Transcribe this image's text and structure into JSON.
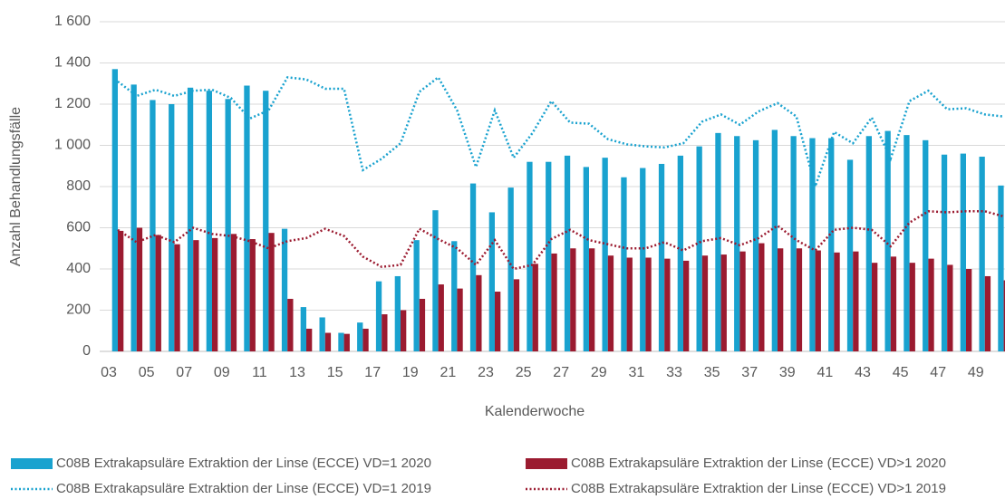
{
  "chart_data": {
    "type": "bar",
    "x_label": "Kalenderwoche",
    "y_label": "Anzahl Behandlungsfälle",
    "categories": [
      "03",
      null,
      "05",
      null,
      "07",
      null,
      "09",
      null,
      "11",
      null,
      "13",
      null,
      "15",
      null,
      "17",
      null,
      "19",
      null,
      "21",
      null,
      "23",
      null,
      "25",
      null,
      "27",
      null,
      "29",
      null,
      "31",
      null,
      "33",
      null,
      "35",
      null,
      "37",
      null,
      "39",
      null,
      "41",
      null,
      "43",
      null,
      "45",
      null,
      "47",
      null,
      "49",
      null
    ],
    "ylim": [
      0,
      1600
    ],
    "yticks": [
      0,
      200,
      400,
      600,
      800,
      {
        "value": 1000,
        "label": "1 000"
      },
      {
        "value": 1200,
        "label": "1 200"
      },
      {
        "value": 1400,
        "label": "1 400"
      },
      {
        "value": 1600,
        "label": "1 600"
      }
    ],
    "grid": true,
    "legend": "bottom",
    "series": [
      {
        "name": "C08B Extrakapsuläre Extraktion der Linse (ECCE) VD=1 2020",
        "type": "bar",
        "color": "#19a2cf",
        "values": [
          1370,
          1295,
          1220,
          1200,
          1280,
          1265,
          1225,
          1290,
          1265,
          595,
          215,
          165,
          90,
          140,
          340,
          365,
          540,
          685,
          535,
          815,
          675,
          795,
          920,
          920,
          950,
          895,
          940,
          845,
          890,
          910,
          950,
          995,
          1060,
          1045,
          1025,
          1075,
          1045,
          1035,
          1035,
          930,
          1045,
          1070,
          1050,
          1025,
          955,
          960,
          945,
          805
        ]
      },
      {
        "name": "C08B Extrakapsuläre Extraktion der Linse (ECCE) VD>1 2020",
        "type": "bar",
        "color": "#9b1b30",
        "values": [
          585,
          600,
          565,
          520,
          540,
          550,
          570,
          545,
          575,
          255,
          110,
          90,
          85,
          110,
          180,
          200,
          255,
          325,
          305,
          370,
          290,
          350,
          425,
          475,
          500,
          500,
          465,
          455,
          455,
          450,
          440,
          465,
          470,
          485,
          525,
          500,
          500,
          490,
          480,
          485,
          430,
          460,
          430,
          450,
          420,
          400,
          365,
          345
        ]
      },
      {
        "name": "C08B Extrakapsuläre Extraktion der Linse (ECCE) VD=1 2019",
        "type": "line",
        "line_style": "dotted",
        "color": "#19a2cf",
        "values": [
          1310,
          1240,
          1270,
          1240,
          1265,
          1270,
          1230,
          1130,
          1170,
          1330,
          1320,
          1275,
          1275,
          880,
          935,
          1010,
          1260,
          1330,
          1170,
          895,
          1170,
          940,
          1060,
          1215,
          1110,
          1105,
          1030,
          1005,
          995,
          990,
          1010,
          1115,
          1150,
          1100,
          1165,
          1205,
          1140,
          800,
          1065,
          1010,
          1135,
          935,
          1215,
          1265,
          1175,
          1180,
          1150,
          1140
        ]
      },
      {
        "name": "C08B Extrakapsuläre Extraktion der Linse (ECCE) VD>1 2019",
        "type": "line",
        "line_style": "dotted",
        "color": "#9b1b30",
        "values": [
          590,
          530,
          565,
          530,
          600,
          570,
          560,
          535,
          500,
          535,
          550,
          595,
          560,
          460,
          410,
          420,
          595,
          545,
          500,
          420,
          540,
          400,
          420,
          545,
          590,
          540,
          520,
          500,
          500,
          530,
          490,
          535,
          550,
          515,
          550,
          610,
          540,
          490,
          590,
          600,
          590,
          510,
          625,
          680,
          675,
          680,
          680,
          655
        ]
      }
    ]
  }
}
